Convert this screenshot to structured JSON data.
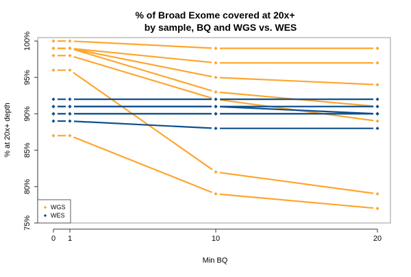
{
  "chart_data": {
    "type": "line",
    "title": "% of Broad Exome covered at 20x+",
    "subtitle": "by sample, BQ and WGS vs. WES",
    "xlabel": "Min BQ",
    "ylabel": "% at 20x+ depth",
    "x": [
      0,
      1,
      10,
      20
    ],
    "x_ticks": [
      "0",
      "1",
      "10",
      "20"
    ],
    "ylim": [
      75,
      100
    ],
    "y_ticks": [
      "75%",
      "80%",
      "85%",
      "90%",
      "95%",
      "100%"
    ],
    "y_tick_values": [
      75,
      80,
      85,
      90,
      95,
      100
    ],
    "grid": false,
    "legend_position": "bottom-left",
    "colors": {
      "WGS": "#FFA52C",
      "WES": "#0F4F8C"
    },
    "series": [
      {
        "group": "WGS",
        "values": [
          100,
          100,
          99,
          99
        ]
      },
      {
        "group": "WGS",
        "values": [
          99,
          99,
          97,
          97
        ]
      },
      {
        "group": "WGS",
        "values": [
          99,
          99,
          95,
          94
        ]
      },
      {
        "group": "WGS",
        "values": [
          99,
          99,
          93,
          91
        ]
      },
      {
        "group": "WGS",
        "values": [
          98,
          98,
          92,
          89
        ]
      },
      {
        "group": "WGS",
        "values": [
          96,
          96,
          82,
          79
        ]
      },
      {
        "group": "WGS",
        "values": [
          87,
          87,
          79,
          77
        ]
      },
      {
        "group": "WES",
        "values": [
          92,
          92,
          92,
          92
        ]
      },
      {
        "group": "WES",
        "values": [
          91,
          91,
          91,
          91
        ]
      },
      {
        "group": "WES",
        "values": [
          91,
          91,
          91,
          90
        ]
      },
      {
        "group": "WES",
        "values": [
          90,
          90,
          90,
          90
        ]
      },
      {
        "group": "WES",
        "values": [
          90,
          90,
          90,
          90
        ]
      },
      {
        "group": "WES",
        "values": [
          89,
          89,
          88,
          88
        ]
      }
    ],
    "legend": [
      "WGS",
      "WES"
    ]
  }
}
